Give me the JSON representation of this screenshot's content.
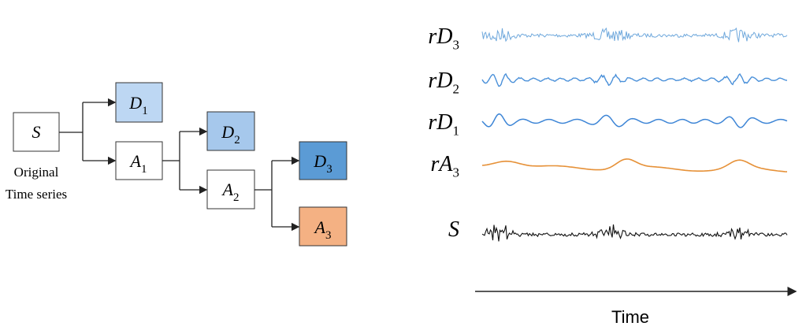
{
  "tree": {
    "nodes": [
      {
        "base": "S"
      },
      {
        "base": "D",
        "sub": "1"
      },
      {
        "base": "A",
        "sub": "1"
      },
      {
        "base": "D",
        "sub": "2"
      },
      {
        "base": "A",
        "sub": "2"
      },
      {
        "base": "D",
        "sub": "3"
      },
      {
        "base": "A",
        "sub": "3"
      }
    ],
    "source_caption": [
      "Original",
      "Time series"
    ]
  },
  "signals": {
    "labels": [
      {
        "base": "rD",
        "sub": "3"
      },
      {
        "base": "rD",
        "sub": "2"
      },
      {
        "base": "rD",
        "sub": "1"
      },
      {
        "base": "rA",
        "sub": "3"
      },
      {
        "base": "S"
      }
    ],
    "axis_label": "Time"
  }
}
